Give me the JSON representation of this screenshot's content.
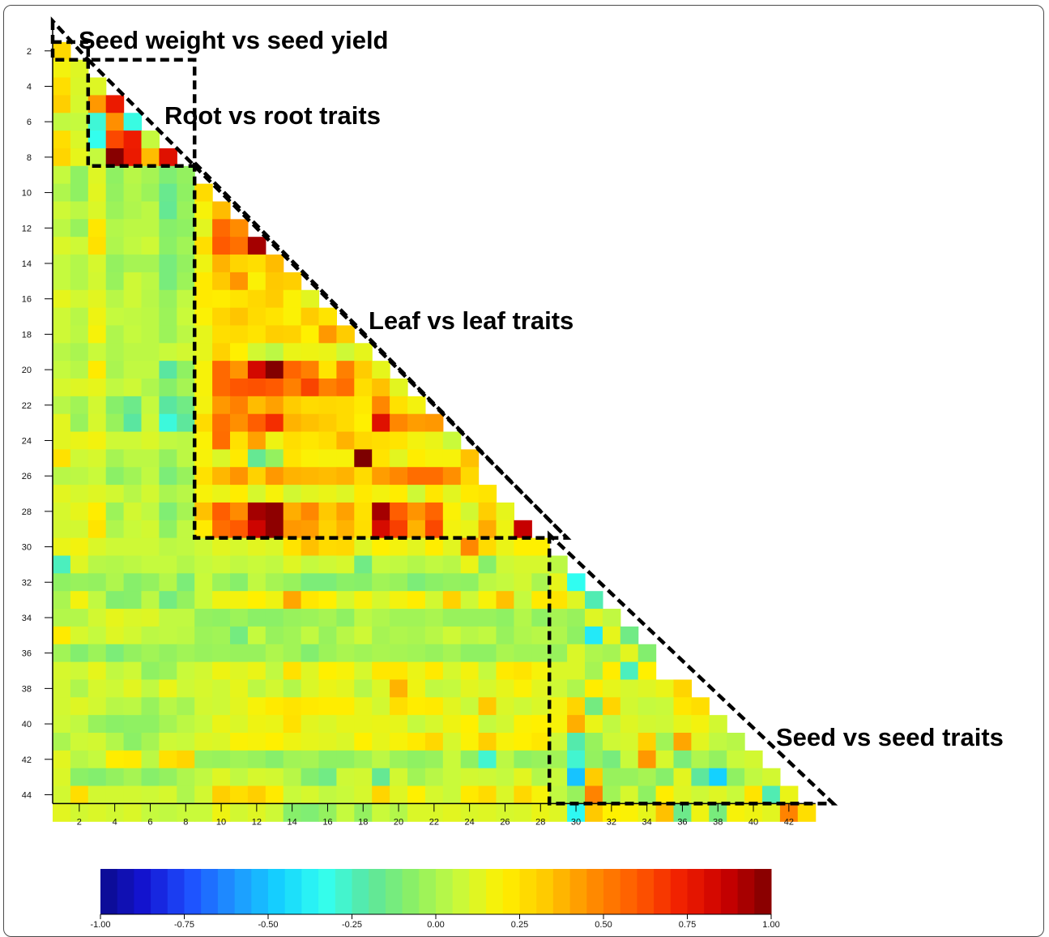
{
  "chart_data": {
    "type": "heatmap",
    "shape": "lower-triangle",
    "n_traits": 44,
    "title": "",
    "xlabel": "",
    "ylabel": "",
    "x_tick_labels": [
      "2",
      "4",
      "6",
      "8",
      "10",
      "12",
      "14",
      "16",
      "18",
      "20",
      "22",
      "24",
      "26",
      "28",
      "30",
      "32",
      "34",
      "36",
      "38",
      "40",
      "42"
    ],
    "y_tick_labels": [
      "2",
      "4",
      "6",
      "8",
      "10",
      "12",
      "14",
      "16",
      "18",
      "20",
      "22",
      "24",
      "26",
      "28",
      "30",
      "32",
      "34",
      "36",
      "38",
      "40",
      "42",
      "44"
    ],
    "colorbar": {
      "min": -1.0,
      "max": 1.0,
      "tick_labels": [
        "-1.00",
        "-0.75",
        "-0.50",
        "-0.25",
        "0.00",
        "0.25",
        "0.50",
        "0.75",
        "1.00"
      ],
      "colors": [
        "#0a0a8c",
        "#1414d2",
        "#1e50ff",
        "#1e96ff",
        "#14d2ff",
        "#32fff0",
        "#5ae6a0",
        "#8cf064",
        "#c8fa3c",
        "#fff000",
        "#ffc800",
        "#ff8c00",
        "#ff5a00",
        "#f01e00",
        "#c80000",
        "#7d0000"
      ]
    },
    "annotations": [
      {
        "label": "Seed weight vs seed yield",
        "rows": [
          2,
          2
        ],
        "cols": [
          1,
          1
        ]
      },
      {
        "label": "Root vs root traits",
        "rows": [
          4,
          8
        ],
        "cols": [
          3,
          8
        ]
      },
      {
        "label": "Leaf vs leaf traits",
        "rows": [
          10,
          29
        ],
        "cols": [
          9,
          29
        ]
      },
      {
        "label": "Seed vs seed traits",
        "rows": [
          31,
          44
        ],
        "cols": [
          30,
          44
        ]
      }
    ],
    "cells": [
      [
        0.28
      ],
      [
        0.17,
        0.12
      ],
      [
        0.26,
        0.11,
        0.12
      ],
      [
        0.31,
        0.1,
        0.44,
        0.75
      ],
      [
        0.05,
        0.06,
        -0.29,
        0.46,
        -0.31
      ],
      [
        0.26,
        0.11,
        -0.33,
        0.64,
        0.74,
        0.06
      ],
      [
        0.29,
        0.14,
        0.06,
        0.98,
        0.75,
        0.36,
        0.79
      ],
      [
        0.06,
        -0.06,
        0.12,
        -0.06,
        0.03,
        -0.01,
        -0.1,
        -0.05
      ],
      [
        0.01,
        -0.06,
        0.13,
        -0.05,
        0.02,
        -0.03,
        -0.16,
        -0.06,
        0.27
      ],
      [
        0.08,
        0.04,
        0.11,
        -0.03,
        0.01,
        0.04,
        -0.17,
        -0.04,
        0.18,
        0.36
      ],
      [
        0.04,
        -0.04,
        0.23,
        0.02,
        0.04,
        0.04,
        -0.08,
        -0.06,
        0.13,
        0.56,
        0.47
      ],
      [
        0.11,
        0.08,
        0.25,
        0.01,
        0.05,
        0.08,
        -0.07,
        -0.02,
        0.26,
        0.6,
        0.54,
        0.93
      ],
      [
        0.06,
        0.02,
        0.1,
        -0.05,
        -0.01,
        -0.01,
        -0.12,
        -0.05,
        0.16,
        0.38,
        0.29,
        0.26,
        0.36
      ],
      [
        0.06,
        0.02,
        0.09,
        -0.04,
        0.08,
        0.04,
        -0.12,
        -0.03,
        0.22,
        0.33,
        0.45,
        0.19,
        0.33,
        0.31
      ],
      [
        0.14,
        0.09,
        0.13,
        0.03,
        0.08,
        0.03,
        -0.04,
        0.05,
        0.22,
        0.21,
        0.24,
        0.28,
        0.32,
        0.19,
        0.13
      ],
      [
        0.08,
        0.03,
        0.16,
        0.06,
        0.05,
        0.04,
        -0.03,
        0.07,
        0.19,
        0.29,
        0.34,
        0.27,
        0.24,
        0.19,
        0.32,
        0.24
      ],
      [
        0.08,
        0.04,
        0.18,
        0.01,
        0.06,
        0.04,
        -0.03,
        0.04,
        0.14,
        0.26,
        0.27,
        0.24,
        0.31,
        0.3,
        0.2,
        0.44,
        0.32
      ],
      [
        0.03,
        0.0,
        0.07,
        0.01,
        0.04,
        0.04,
        0.07,
        0.09,
        0.14,
        0.3,
        0.2,
        0.09,
        0.04,
        0.15,
        0.16,
        0.15,
        0.08,
        0.14
      ],
      [
        0.06,
        0.03,
        0.22,
        0.0,
        0.05,
        0.05,
        -0.2,
        -0.06,
        0.18,
        0.56,
        0.45,
        0.83,
        0.99,
        0.57,
        0.5,
        0.24,
        0.5,
        0.32,
        0.14
      ],
      [
        0.1,
        0.12,
        0.14,
        0.05,
        0.08,
        0.01,
        -0.08,
        -0.01,
        0.18,
        0.56,
        0.61,
        0.62,
        0.6,
        0.5,
        0.65,
        0.5,
        0.55,
        0.26,
        0.35,
        0.13
      ],
      [
        0.03,
        -0.02,
        0.09,
        -0.08,
        -0.15,
        0.06,
        -0.2,
        -0.14,
        0.17,
        0.44,
        0.5,
        0.36,
        0.42,
        0.32,
        0.27,
        0.28,
        0.27,
        0.22,
        0.48,
        0.25,
        0.17
      ],
      [
        0.13,
        -0.04,
        0.1,
        -0.04,
        -0.2,
        0.08,
        -0.3,
        -0.19,
        0.27,
        0.54,
        0.46,
        0.59,
        0.7,
        0.38,
        0.35,
        0.32,
        0.27,
        0.2,
        0.79,
        0.48,
        0.43,
        0.44
      ],
      [
        0.13,
        0.15,
        0.17,
        0.08,
        0.08,
        0.11,
        0.05,
        0.04,
        0.19,
        0.55,
        0.25,
        0.42,
        0.16,
        0.26,
        0.23,
        0.26,
        0.38,
        0.28,
        0.26,
        0.24,
        0.17,
        0.15,
        0.07
      ],
      [
        0.25,
        0.08,
        0.1,
        -0.01,
        0.04,
        0.04,
        -0.05,
        0.04,
        0.18,
        0.11,
        0.22,
        -0.17,
        -0.05,
        0.24,
        0.19,
        0.18,
        0.18,
        1.0,
        0.24,
        0.13,
        0.21,
        0.18,
        0.18,
        0.35
      ],
      [
        0.03,
        0.04,
        0.07,
        -0.07,
        -0.02,
        0.05,
        -0.11,
        -0.04,
        0.25,
        0.37,
        0.45,
        0.3,
        0.44,
        0.38,
        0.37,
        0.36,
        0.38,
        0.27,
        0.43,
        0.48,
        0.55,
        0.55,
        0.46,
        0.28
      ],
      [
        0.13,
        0.1,
        0.12,
        0.09,
        0.03,
        0.09,
        0.0,
        0.03,
        0.18,
        0.15,
        0.21,
        0.1,
        0.18,
        0.09,
        0.13,
        0.15,
        0.12,
        0.22,
        0.17,
        0.21,
        0.08,
        0.23,
        0.13,
        0.22,
        0.24
      ],
      [
        0.1,
        0.14,
        0.21,
        -0.03,
        0.09,
        0.05,
        -0.1,
        -0.01,
        0.35,
        0.59,
        0.47,
        0.93,
        0.97,
        0.39,
        0.48,
        0.33,
        0.42,
        0.25,
        0.93,
        0.59,
        0.45,
        0.57,
        0.19,
        0.09,
        0.31,
        0.14
      ],
      [
        0.09,
        0.09,
        0.24,
        0.01,
        0.07,
        0.09,
        -0.06,
        0.05,
        0.22,
        0.55,
        0.6,
        0.85,
        0.97,
        0.44,
        0.43,
        0.3,
        0.38,
        0.26,
        0.82,
        0.66,
        0.38,
        0.64,
        0.17,
        0.15,
        0.4,
        0.16,
        0.87
      ],
      [
        0.15,
        0.17,
        0.11,
        0.08,
        0.08,
        0.08,
        0.04,
        0.05,
        0.08,
        0.13,
        0.1,
        0.13,
        0.11,
        0.24,
        0.35,
        0.27,
        0.28,
        0.12,
        0.2,
        0.17,
        0.13,
        0.21,
        0.13,
        0.48,
        0.27,
        0.15,
        0.2,
        0.2
      ],
      [
        -0.25,
        0.12,
        0.03,
        0.02,
        0.04,
        0.06,
        0.06,
        0.02,
        0.06,
        0.08,
        0.05,
        0.07,
        0.05,
        0.12,
        0.06,
        0.08,
        0.1,
        -0.14,
        0.06,
        0.05,
        0.02,
        0.05,
        0.03,
        0.15,
        -0.08,
        0.08,
        0.1,
        0.1,
        0.04
      ],
      [
        -0.06,
        -0.04,
        -0.05,
        0.01,
        -0.08,
        -0.05,
        0.02,
        -0.11,
        0.07,
        -0.03,
        -0.08,
        0.05,
        -0.01,
        -0.04,
        -0.11,
        -0.11,
        -0.07,
        -0.08,
        -0.02,
        -0.04,
        -0.11,
        -0.07,
        -0.05,
        -0.06,
        0.04,
        0.06,
        0.09,
        0.0,
        0.14,
        -0.34
      ],
      [
        0.0,
        0.17,
        0.05,
        -0.09,
        -0.08,
        0.04,
        -0.13,
        -0.05,
        0.07,
        0.16,
        0.17,
        0.2,
        0.16,
        0.41,
        0.23,
        0.2,
        0.1,
        0.17,
        0.1,
        0.17,
        0.21,
        0.09,
        0.3,
        0.08,
        0.18,
        0.35,
        0.06,
        0.22,
        0.24,
        0.12,
        -0.23
      ],
      [
        0.02,
        0.02,
        0.09,
        0.14,
        0.11,
        0.12,
        0.05,
        0.05,
        -0.05,
        -0.06,
        -0.03,
        -0.07,
        -0.07,
        -0.04,
        -0.03,
        -0.01,
        -0.06,
        0.04,
        0.01,
        -0.02,
        -0.02,
        0.0,
        -0.04,
        -0.04,
        -0.04,
        -0.06,
        0.02,
        -0.06,
        -0.01,
        -0.04,
        0.12,
        0.05
      ],
      [
        0.22,
        0.1,
        0.06,
        0.12,
        0.09,
        0.04,
        0.05,
        0.04,
        -0.03,
        -0.02,
        -0.13,
        0.06,
        -0.04,
        -0.02,
        0.05,
        -0.04,
        0.03,
        0.08,
        -0.01,
        0.01,
        0.0,
        0.03,
        0.08,
        0.03,
        0.05,
        -0.04,
        0.01,
        0.03,
        0.01,
        -0.06,
        -0.4,
        0.14,
        -0.14
      ],
      [
        -0.02,
        -0.09,
        -0.03,
        -0.11,
        -0.05,
        -0.02,
        -0.05,
        -0.02,
        -0.04,
        -0.03,
        -0.04,
        -0.04,
        0.01,
        -0.02,
        -0.09,
        -0.03,
        0.0,
        -0.02,
        0.0,
        -0.01,
        -0.02,
        -0.04,
        -0.01,
        -0.06,
        -0.06,
        0.0,
        -0.02,
        -0.02,
        -0.04,
        0.11,
        0.01,
        -0.01,
        0.13,
        -0.09
      ],
      [
        0.1,
        0.08,
        0.14,
        0.05,
        0.08,
        -0.06,
        -0.03,
        0.07,
        0.09,
        0.16,
        0.12,
        0.15,
        0.05,
        0.25,
        0.12,
        0.2,
        0.18,
        0.1,
        0.23,
        0.23,
        0.15,
        0.22,
        0.1,
        0.17,
        0.06,
        0.22,
        0.24,
        0.18,
        0.11,
        0.11,
        -0.01,
        0.21,
        -0.25,
        0.2
      ],
      [
        0.09,
        0.01,
        0.1,
        0.08,
        0.13,
        0.05,
        0.15,
        0.08,
        0.1,
        0.08,
        0.14,
        0.04,
        0.09,
        0.02,
        0.11,
        0.15,
        0.13,
        0.03,
        0.11,
        0.38,
        0.16,
        0.05,
        0.06,
        0.13,
        0.1,
        0.14,
        0.19,
        0.13,
        0.08,
        0.01,
        0.21,
        0.14,
        0.1,
        0.12,
        0.15,
        0.29
      ],
      [
        0.09,
        0.12,
        0.09,
        0.03,
        0.04,
        -0.04,
        0.03,
        -0.01,
        0.09,
        0.08,
        0.13,
        0.18,
        0.22,
        0.24,
        0.22,
        0.21,
        0.21,
        0.14,
        0.09,
        0.26,
        0.21,
        0.22,
        0.13,
        0.07,
        0.33,
        0.11,
        0.08,
        0.11,
        0.17,
        0.29,
        -0.13,
        0.29,
        0.09,
        0.06,
        0.07,
        0.23,
        0.26
      ],
      [
        0.08,
        0.05,
        -0.04,
        -0.07,
        -0.06,
        -0.06,
        -0.01,
        0.04,
        0.07,
        0.15,
        0.11,
        0.16,
        0.15,
        0.25,
        0.13,
        0.11,
        0.14,
        0.14,
        0.15,
        0.14,
        0.06,
        0.1,
        0.16,
        0.2,
        0.06,
        0.09,
        0.19,
        0.2,
        0.18,
        0.39,
        0.15,
        0.05,
        0.12,
        0.09,
        0.08,
        0.14,
        0.17,
        0.09
      ],
      [
        0.0,
        0.08,
        0.09,
        0.02,
        -0.07,
        -0.01,
        0.08,
        0.07,
        0.12,
        0.11,
        0.19,
        0.18,
        0.2,
        0.16,
        0.14,
        0.13,
        0.11,
        0.2,
        0.14,
        0.18,
        0.22,
        0.28,
        0.1,
        0.19,
        0.31,
        0.18,
        0.2,
        0.23,
        0.08,
        -0.22,
        -0.04,
        0.08,
        0.1,
        0.3,
        -0.02,
        0.41,
        0.13,
        0.05,
        0.03
      ],
      [
        0.13,
        0.03,
        0.06,
        0.21,
        0.22,
        0.04,
        0.25,
        0.29,
        -0.03,
        -0.04,
        -0.02,
        -0.04,
        -0.08,
        -0.02,
        -0.01,
        -0.06,
        -0.06,
        -0.02,
        0.04,
        -0.03,
        -0.06,
        -0.04,
        0.07,
        -0.06,
        -0.28,
        0.04,
        -0.06,
        -0.04,
        -0.02,
        -0.28,
        -0.05,
        -0.12,
        0.07,
        0.44,
        0.1,
        -0.11,
        0.01,
        -0.05,
        0.07,
        0.09
      ],
      [
        0.11,
        -0.07,
        -0.09,
        -0.05,
        -0.01,
        -0.08,
        -0.05,
        0.01,
        0.05,
        0.12,
        0.05,
        0.1,
        0.09,
        0.03,
        -0.09,
        -0.14,
        0.08,
        0.09,
        -0.17,
        0.09,
        -0.02,
        0.03,
        0.07,
        0.09,
        0.08,
        0.06,
        0.13,
        0.02,
        0.07,
        -0.5,
        0.32,
        -0.04,
        -0.04,
        -0.01,
        -0.08,
        0.13,
        -0.19,
        -0.47,
        -0.06,
        0.05,
        0.09
      ],
      [
        0.09,
        0.26,
        0.09,
        0.09,
        0.09,
        0.08,
        0.1,
        0.01,
        0.09,
        0.31,
        0.26,
        0.31,
        0.22,
        0.07,
        0.1,
        0.05,
        0.07,
        0.1,
        0.29,
        0.12,
        0.2,
        0.1,
        0.07,
        0.22,
        0.27,
        0.11,
        0.28,
        0.18,
        0.05,
        -0.04,
        0.49,
        -0.02,
        0.1,
        -0.06,
        0.21,
        0.12,
        0.08,
        0.12,
        0.07,
        0.24,
        -0.23,
        0.15
      ],
      [
        0.13,
        0.09,
        0.11,
        0.09,
        0.11,
        0.06,
        0.05,
        0.07,
        0.07,
        0.16,
        0.09,
        0.12,
        0.08,
        -0.08,
        -0.1,
        -0.05,
        0.06,
        -0.05,
        0.07,
        0.02,
        0.11,
        0.11,
        0.13,
        0.11,
        0.12,
        0.1,
        0.11,
        0.15,
        0.12,
        -0.35,
        0.33,
        0.2,
        0.19,
        0.14,
        0.35,
        -0.15,
        0.16,
        -0.12,
        0.18,
        0.16,
        0.13,
        0.49,
        0.26
      ]
    ]
  }
}
